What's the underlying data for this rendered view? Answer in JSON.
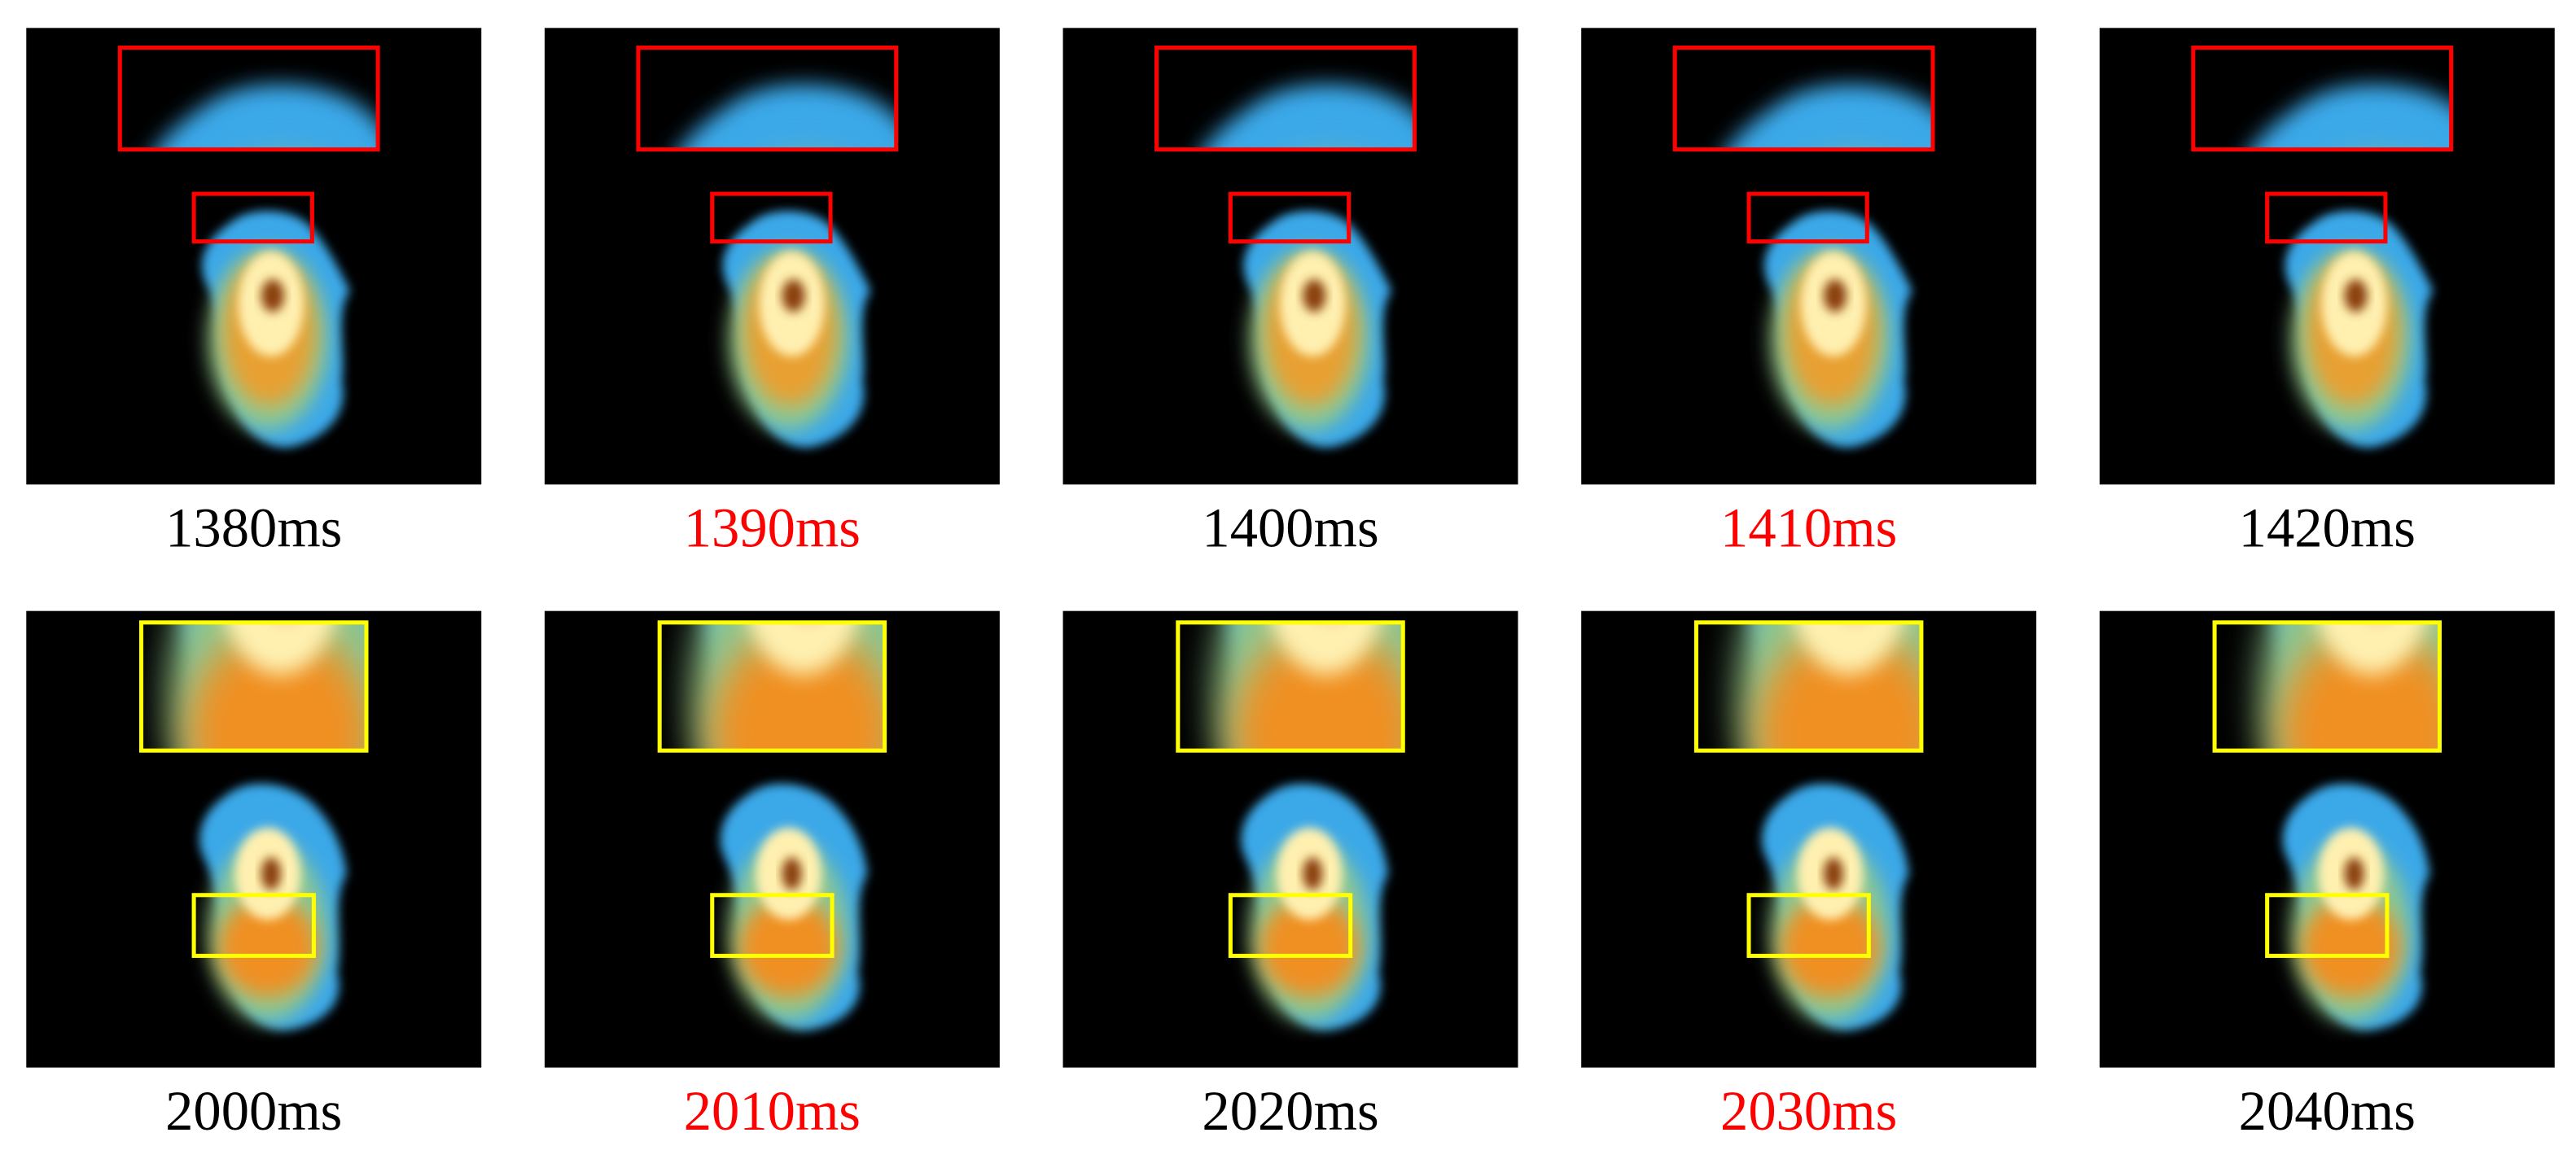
{
  "rows": [
    {
      "box_color": "#ff0000",
      "panels": [
        {
          "label": "1380ms",
          "label_color": "#000000"
        },
        {
          "label": "1390ms",
          "label_color": "#ff0000"
        },
        {
          "label": "1400ms",
          "label_color": "#000000"
        },
        {
          "label": "1410ms",
          "label_color": "#ff0000"
        },
        {
          "label": "1420ms",
          "label_color": "#000000"
        }
      ]
    },
    {
      "box_color": "#ffff00",
      "panels": [
        {
          "label": "2000ms",
          "label_color": "#000000"
        },
        {
          "label": "2010ms",
          "label_color": "#ff0000"
        },
        {
          "label": "2020ms",
          "label_color": "#000000"
        },
        {
          "label": "2030ms",
          "label_color": "#ff0000"
        },
        {
          "label": "2040ms",
          "label_color": "#000000"
        }
      ]
    }
  ]
}
